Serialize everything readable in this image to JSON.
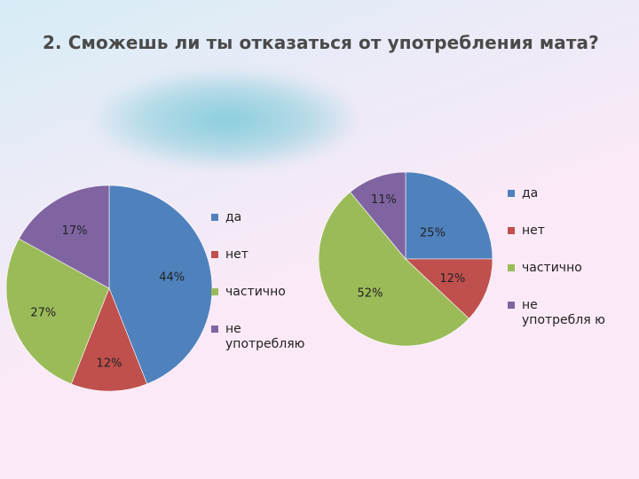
{
  "title": "2. Сможешь ли ты отказаться от употребления мата?",
  "colors": {
    "da": "#4f81bd",
    "net": "#c0504d",
    "chastichno": "#9bbb59",
    "ne": "#8064a2"
  },
  "chart_data": [
    {
      "type": "pie",
      "categories": [
        "да",
        "нет",
        "частично",
        "не употребляю"
      ],
      "values": [
        44,
        12,
        27,
        17
      ],
      "labels": [
        "44%",
        "12%",
        "27%",
        "17%"
      ],
      "legend": [
        "да",
        "нет",
        "частично",
        "не употребляю"
      ],
      "legend_position": "right"
    },
    {
      "type": "pie",
      "categories": [
        "да",
        "нет",
        "частично",
        "не употребляю"
      ],
      "values": [
        25,
        12,
        52,
        11
      ],
      "labels": [
        "25%",
        "12%",
        "52%",
        "11%"
      ],
      "legend": [
        "да",
        "нет",
        "частично",
        "не употребля ю"
      ],
      "legend_position": "right"
    }
  ]
}
